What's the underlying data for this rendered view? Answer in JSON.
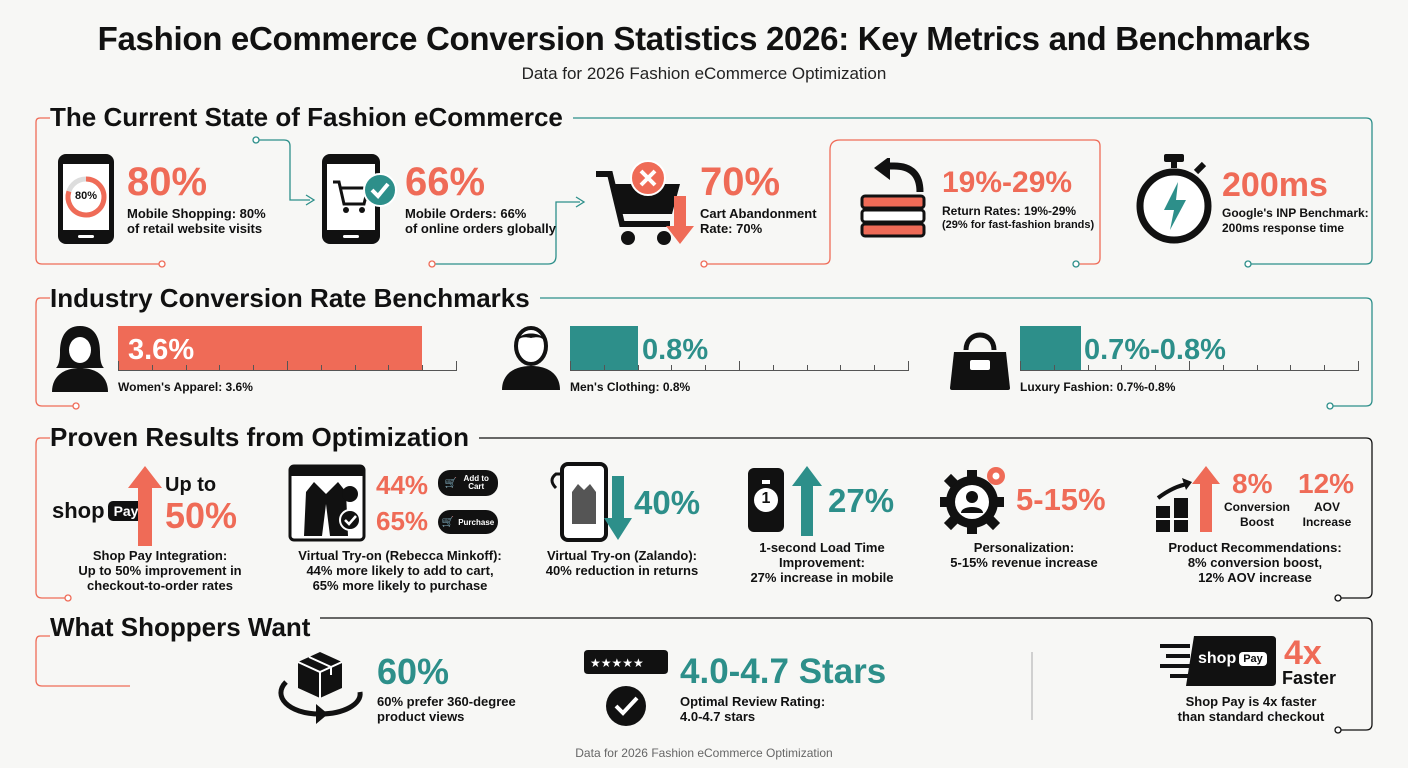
{
  "header": {
    "title": "Fashion eCommerce Conversion Statistics 2026: Key Metrics and Benchmarks",
    "subtitle": "Data for 2026 Fashion eCommerce Optimization"
  },
  "colors": {
    "red": "#ef6b57",
    "teal": "#2d8f8a",
    "dark": "#111111"
  },
  "section1": {
    "title": "The Current State of Fashion eCommerce",
    "items": [
      {
        "icon": "phone-progress-icon",
        "phone_badge": "80%",
        "value": "80%",
        "label_1": "Mobile Shopping: 80%",
        "label_2": "of retail website visits"
      },
      {
        "icon": "phone-cart-check-icon",
        "value": "66%",
        "label_1": "Mobile Orders: 66%",
        "label_2": "of online orders globally"
      },
      {
        "icon": "cart-abandon-icon",
        "value": "70%",
        "label_1": "Cart Abandonment",
        "label_2": "Rate: 70%"
      },
      {
        "icon": "return-clothes-icon",
        "value": "19%-29%",
        "label_1": "Return Rates: 19%-29%",
        "label_2": "(29% for fast-fashion brands)"
      },
      {
        "icon": "stopwatch-bolt-icon",
        "value": "200ms",
        "label_1": "Google's INP Benchmark:",
        "label_2": "200ms response time"
      }
    ]
  },
  "section2": {
    "title": "Industry Conversion Rate Benchmarks",
    "items": [
      {
        "icon": "woman-icon",
        "value": "3.6%",
        "label": "Women's Apparel: 3.6%",
        "fill": 0.9
      },
      {
        "icon": "man-icon",
        "value": "0.8%",
        "label": "Men's Clothing: 0.8%",
        "fill": 0.2
      },
      {
        "icon": "handbag-icon",
        "value": "0.7%-0.8%",
        "label": "Luxury Fashion: 0.7%-0.8%",
        "fill": 0.18
      }
    ]
  },
  "section3": {
    "title": "Proven Results from Optimization",
    "shop_pay": {
      "logo_shop": "shop",
      "logo_pay": "Pay",
      "up_to": "Up to",
      "value": "50%",
      "label_1": "Shop Pay Integration:",
      "label_2": "Up to 50% improvement in",
      "label_3": "checkout-to-order rates"
    },
    "vto_rebecca": {
      "value_1": "44%",
      "value_2": "65%",
      "pill_1": "Add to Cart",
      "pill_2": "Purchase",
      "label_1": "Virtual Try-on (Rebecca Minkoff):",
      "label_2": "44% more likely to add to cart,",
      "label_3": "65% more likely to purchase"
    },
    "vto_zalando": {
      "value": "40%",
      "label_1": "Virtual Try-on (Zalando):",
      "label_2": "40% reduction in returns"
    },
    "load_time": {
      "icon_digit": "1",
      "value": "27%",
      "label_1": "1-second Load Time",
      "label_2": "Improvement:",
      "label_3": "27% increase in mobile"
    },
    "personalization": {
      "value": "5-15%",
      "label_1": "Personalization:",
      "label_2": "5-15% revenue increase"
    },
    "recommendations": {
      "value_1": "8%",
      "sub_1a": "Conversion",
      "sub_1b": "Boost",
      "value_2": "12%",
      "sub_2a": "AOV",
      "sub_2b": "Increase",
      "label_1": "Product Recommendations:",
      "label_2": "8% conversion boost,",
      "label_3": "12% AOV increase"
    }
  },
  "section4": {
    "title": "What Shoppers Want",
    "views": {
      "value": "60%",
      "label_1": "60% prefer 360-degree",
      "label_2": "product views"
    },
    "reviews": {
      "value": "4.0-4.7 Stars",
      "label_1": "Optimal Review Rating:",
      "label_2": "4.0-4.7 stars"
    },
    "shop_pay": {
      "logo_shop": "shop",
      "logo_pay": "Pay",
      "value": "4x",
      "sub": "Faster",
      "label_1": "Shop Pay is 4x faster",
      "label_2": "than standard checkout"
    }
  },
  "footer": "Data for 2026 Fashion eCommerce Optimization"
}
